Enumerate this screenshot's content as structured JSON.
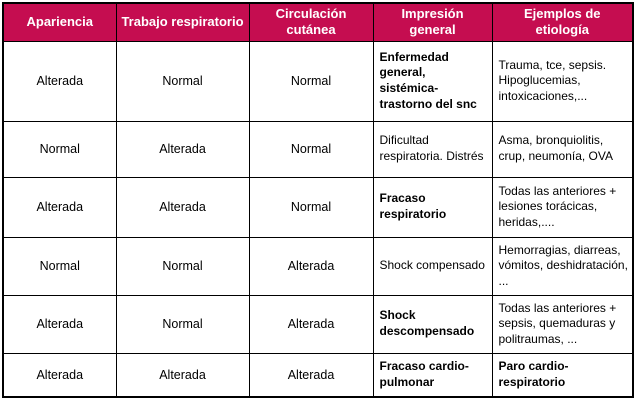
{
  "colors": {
    "header_bg": "#C50D50",
    "header_text": "#FFFFFF",
    "border": "#000000",
    "body_text": "#000000"
  },
  "table": {
    "headers": [
      "Apariencia",
      "Trabajo respiratorio",
      "Circulación cutánea",
      "Impresión general",
      "Ejemplos de etiología"
    ],
    "rows": [
      {
        "cells": [
          "Alterada",
          "Normal",
          "Normal",
          "Enfermedad general, sistémica-trastorno del snc",
          "Trauma, tce, sepsis. Hipoglucemias, intoxicaciones,..."
        ]
      },
      {
        "cells": [
          "Normal",
          "Alterada",
          "Normal",
          "Dificultad respiratoria. Distrés",
          "Asma, bronquiolitis, crup, neumonía, OVA"
        ]
      },
      {
        "cells": [
          "Alterada",
          "Alterada",
          "Normal",
          "Fracaso respiratorio",
          "Todas las anteriores + lesiones torácicas, heridas,...."
        ]
      },
      {
        "cells": [
          "Normal",
          "Normal",
          "Alterada",
          "Shock compensado",
          "Hemorragias, diarreas, vómitos, deshidratación, ..."
        ]
      },
      {
        "cells": [
          "Alterada",
          "Normal",
          "Alterada",
          "Shock descompensado",
          "Todas las anteriores + sepsis, quemaduras y politraumas, ..."
        ]
      },
      {
        "cells": [
          "Alterada",
          "Alterada",
          "Alterada",
          "Fracaso cardio-pulmonar",
          "Paro cardio-respiratorio"
        ]
      }
    ]
  }
}
